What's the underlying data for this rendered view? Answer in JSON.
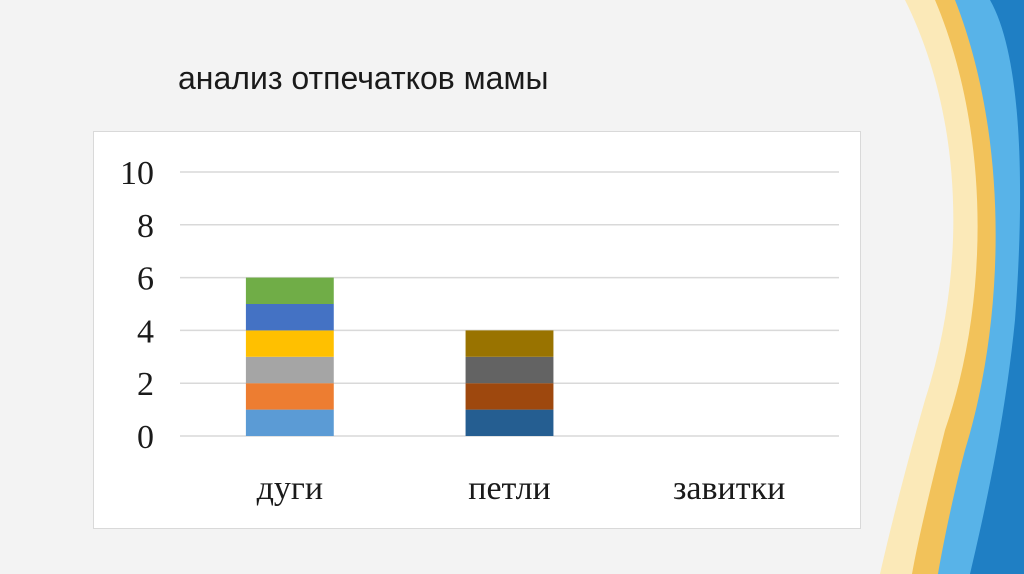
{
  "slide": {
    "title": "анализ отпечатков мамы",
    "decor_colors": [
      "#1f7fc4",
      "#58b3e8",
      "#f2c25a",
      "#fbe9b8"
    ]
  },
  "chart_data": {
    "type": "bar",
    "stacked": true,
    "categories": [
      "дуги",
      "петли",
      "завитки"
    ],
    "ylim": [
      0,
      10
    ],
    "yticks": [
      0,
      2,
      4,
      6,
      8,
      10
    ],
    "grid": true,
    "title": "",
    "xlabel": "",
    "ylabel": "",
    "stacks": [
      {
        "category": "дуги",
        "segments": [
          {
            "value": 1,
            "color": "#5b9bd5"
          },
          {
            "value": 1,
            "color": "#ed7d31"
          },
          {
            "value": 1,
            "color": "#a5a5a5"
          },
          {
            "value": 1,
            "color": "#ffc000"
          },
          {
            "value": 1,
            "color": "#4472c4"
          },
          {
            "value": 1,
            "color": "#70ad47"
          }
        ]
      },
      {
        "category": "петли",
        "segments": [
          {
            "value": 1,
            "color": "#255e91"
          },
          {
            "value": 1,
            "color": "#9e480e"
          },
          {
            "value": 1,
            "color": "#636363"
          },
          {
            "value": 1,
            "color": "#997300"
          }
        ]
      },
      {
        "category": "завитки",
        "segments": []
      }
    ]
  }
}
